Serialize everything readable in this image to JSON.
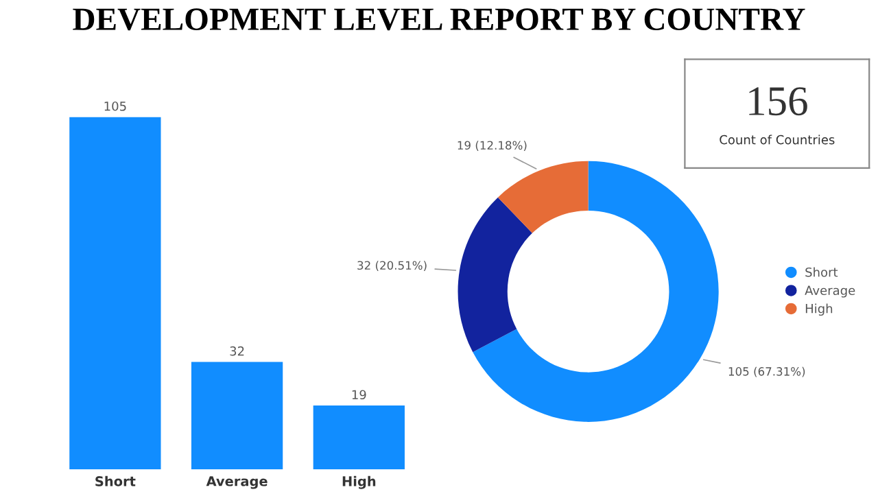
{
  "chart_data": [
    {
      "type": "bar",
      "title": "DEVELOPMENT LEVEL REPORT BY COUNTRY",
      "categories": [
        "Short",
        "Average",
        "High"
      ],
      "values": [
        105,
        32,
        19
      ],
      "color": "#118dff",
      "data_labels": true
    },
    {
      "type": "donut",
      "categories": [
        "Short",
        "Average",
        "High"
      ],
      "values": [
        105,
        32,
        19
      ],
      "colors": [
        "#118dff",
        "#12239e",
        "#e66c37"
      ],
      "value_labels": [
        "105 (67.31%)",
        "32 (20.51%)",
        "19 (12.18%)"
      ],
      "legend": "right"
    },
    {
      "type": "other",
      "annotations": [
        "156",
        "Count of Countries"
      ]
    }
  ]
}
